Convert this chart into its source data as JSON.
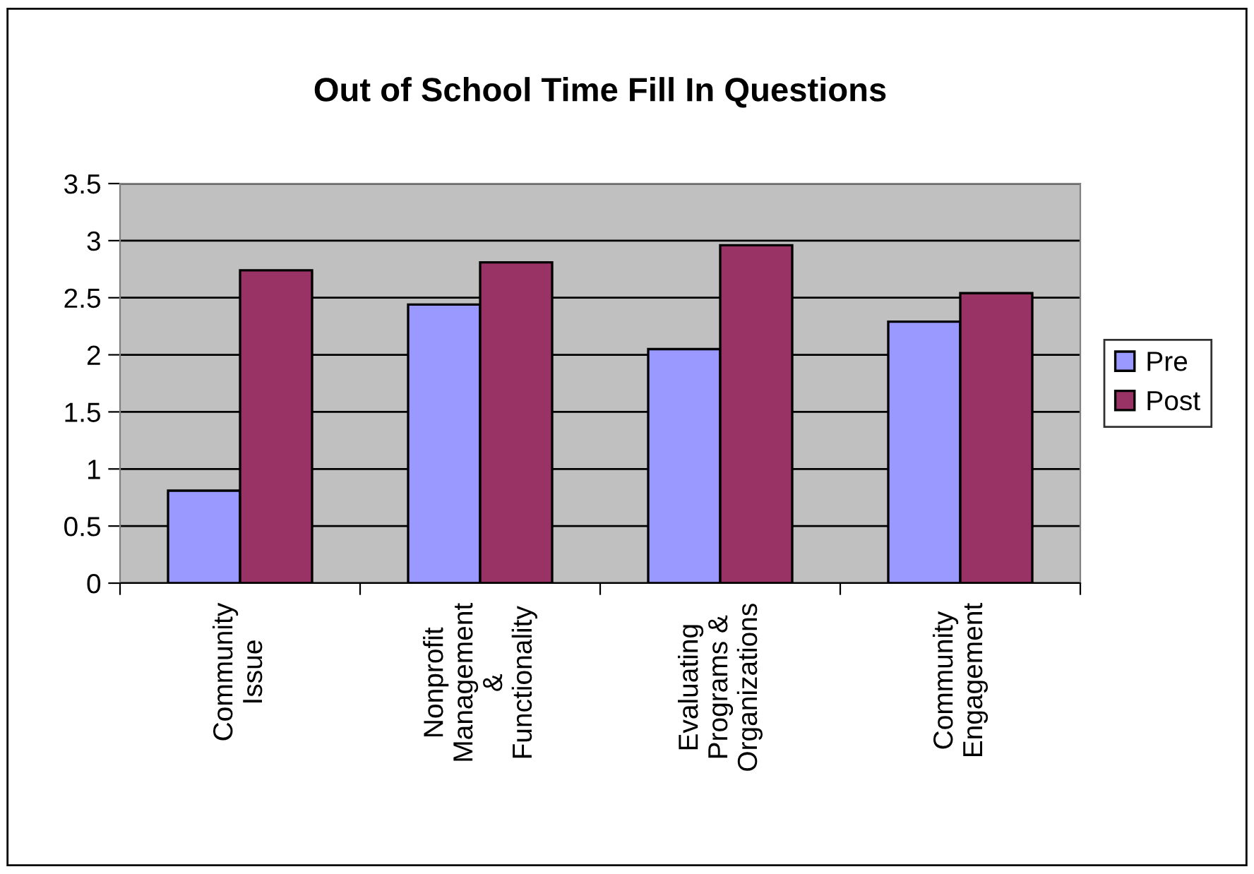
{
  "chart_data": {
    "type": "bar",
    "title": "Out of School Time Fill In Questions",
    "categories": [
      "Community\nIssue",
      "Nonprofit\nManagement\n&\nFunctionality",
      "Evaluating\nPrograms &\nOrganizations",
      "Community\nEngagement"
    ],
    "series": [
      {
        "name": "Pre",
        "color": "#9999ff",
        "values": [
          0.81,
          2.44,
          2.05,
          2.29
        ]
      },
      {
        "name": "Post",
        "color": "#993366",
        "values": [
          2.74,
          2.81,
          2.96,
          2.54
        ]
      }
    ],
    "ylim": [
      0,
      3.5
    ],
    "yticks": [
      0,
      0.5,
      1,
      1.5,
      2,
      2.5,
      3,
      3.5
    ],
    "grid": "y",
    "legend": "right"
  }
}
